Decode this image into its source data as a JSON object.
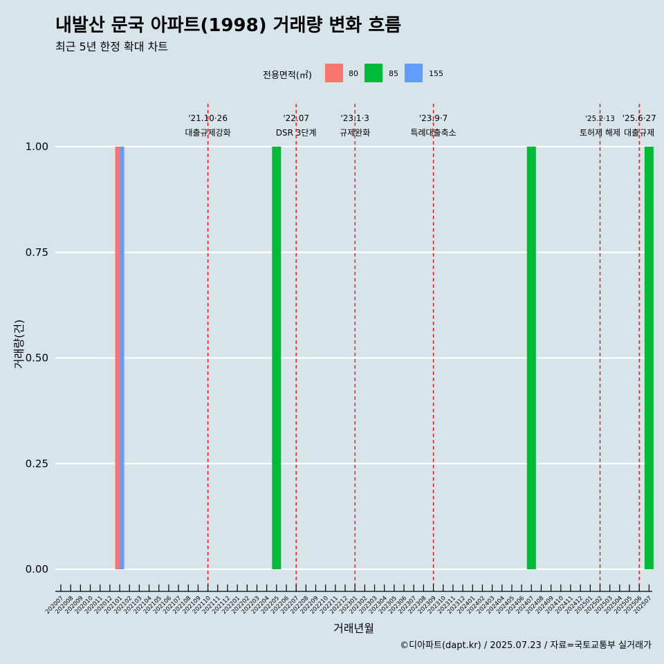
{
  "title": "내발산 문국 아파트(1998) 거래량 변화 흐름",
  "subtitle": "최근 5년 한정 확대 차트",
  "caption": "©디아파트(dapt.kr) / 2025.07.23 / 자료=국토교통부 실거래가",
  "legend": {
    "title": "전용면적(㎡)",
    "items": [
      {
        "label": "80",
        "color": "#f8766d"
      },
      {
        "label": "85",
        "color": "#00ba38"
      },
      {
        "label": "155",
        "color": "#619cff"
      }
    ]
  },
  "chart_data": {
    "type": "bar",
    "title": "내발산 문국 아파트(1998) 거래량 변화 흐름",
    "xlabel": "거래년월",
    "ylabel": "거래량(건)",
    "ylim": [
      0,
      1
    ],
    "yticks": [
      "0.00",
      "0.25",
      "0.50",
      "0.75",
      "1.00"
    ],
    "categories": [
      "202007",
      "202008",
      "202009",
      "202010",
      "202011",
      "202012",
      "202101",
      "202102",
      "202103",
      "202104",
      "202105",
      "202106",
      "202107",
      "202108",
      "202109",
      "202110",
      "202111",
      "202112",
      "202201",
      "202202",
      "202203",
      "202204",
      "202205",
      "202206",
      "202207",
      "202208",
      "202209",
      "202210",
      "202211",
      "202212",
      "202301",
      "202302",
      "202303",
      "202304",
      "202305",
      "202306",
      "202307",
      "202308",
      "202309",
      "202310",
      "202311",
      "202312",
      "202401",
      "202402",
      "202403",
      "202404",
      "202405",
      "202406",
      "202407",
      "202408",
      "202409",
      "202410",
      "202411",
      "202412",
      "202501",
      "202502",
      "202503",
      "202504",
      "202505",
      "202506",
      "202507"
    ],
    "series": [
      {
        "name": "80",
        "color": "#f8766d",
        "points": [
          {
            "x": "202101",
            "y": 1
          }
        ]
      },
      {
        "name": "85",
        "color": "#00ba38",
        "points": [
          {
            "x": "202205",
            "y": 1
          },
          {
            "x": "202407",
            "y": 1
          },
          {
            "x": "202507",
            "y": 1
          }
        ]
      },
      {
        "name": "155",
        "color": "#619cff",
        "points": [
          {
            "x": "202101",
            "y": 1
          }
        ]
      }
    ],
    "annotations": [
      {
        "x": "202110",
        "date": "'21.10·26",
        "label": "대출규제강화"
      },
      {
        "x": "202207",
        "date": "'22.07",
        "label": "DSR 3단계"
      },
      {
        "x": "202301",
        "date": "'23.1·3",
        "label": "규제완화"
      },
      {
        "x": "202309",
        "date": "'23.9·7",
        "label": "특례대출축소"
      },
      {
        "x": "202502",
        "date": "'25.2·13",
        "label": "토허제 해제"
      },
      {
        "x": "202506",
        "date": "'25.6·27",
        "label": "대출규제"
      }
    ]
  }
}
